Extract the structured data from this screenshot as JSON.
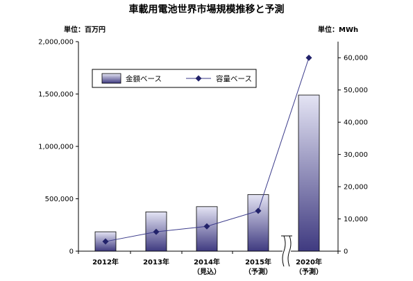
{
  "chart_data": {
    "type": "bar",
    "title": "車載用電池世界市場規模推移と予測",
    "categories": [
      "2012年",
      "2013年",
      "2014年",
      "2015年",
      "2020年"
    ],
    "category_sublabels": [
      "",
      "",
      "（見込）",
      "（予測）",
      "（予測）"
    ],
    "y_left": {
      "unit": "単位：百万円",
      "ylim": [
        0,
        2000000
      ],
      "ticks": [
        "0",
        "500,000",
        "1,000,000",
        "1,500,000",
        "2,000,000"
      ]
    },
    "y_right": {
      "unit": "単位：MWh",
      "ylim": [
        0,
        65000
      ],
      "ticks": [
        "0",
        "10,000",
        "20,000",
        "30,000",
        "40,000",
        "50,000",
        "60,000"
      ]
    },
    "series": [
      {
        "name": "金額ベース",
        "type": "bar",
        "axis": "left",
        "values": [
          185000,
          375000,
          425000,
          540000,
          1490000
        ]
      },
      {
        "name": "容量ベース",
        "type": "line",
        "axis": "right",
        "values": [
          3000,
          6000,
          7700,
          12500,
          60000
        ]
      }
    ],
    "axis_break_before_last": true,
    "legend_position": "top-left",
    "grid": false,
    "colors": {
      "bar_top": "#e4e4f4",
      "bar_bottom": "#3f3a80",
      "bar_edge": "#000000",
      "line": "#3a3a8a",
      "marker": "#22226a"
    }
  }
}
